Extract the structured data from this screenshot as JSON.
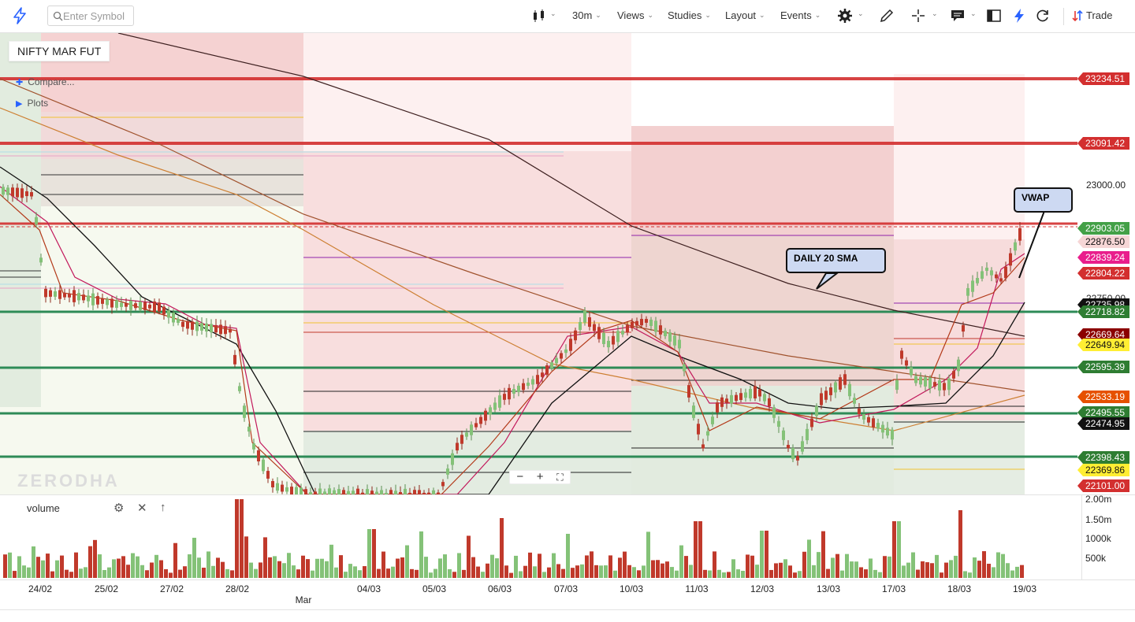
{
  "toolbar": {
    "search_placeholder": "Enter Symbol",
    "interval": "30m",
    "views": "Views",
    "studies": "Studies",
    "layout": "Layout",
    "events": "Events",
    "trade": "Trade"
  },
  "chart": {
    "symbol": "NIFTY MAR FUT",
    "compare": "Compare...",
    "plots": "Plots",
    "watermark": "ZERODHA",
    "callouts": {
      "vwap": "VWAP",
      "sma": "DAILY 20 SMA"
    },
    "accent_color": "#2962ff",
    "up_color": "#84c278",
    "down_color": "#c0392b"
  },
  "price_axis": {
    "ticks": [
      "23000.00",
      "22750.00"
    ],
    "labels": [
      {
        "text": "23234.51",
        "color": "#d32f2f"
      },
      {
        "text": "23091.42",
        "color": "#d32f2f"
      },
      {
        "text": "22903.05",
        "color": "#43a047"
      },
      {
        "text": "22876.50",
        "color": "#f6d6d6"
      },
      {
        "text": "22839.24",
        "color": "#e91e8c"
      },
      {
        "text": "22804.22",
        "color": "#d32f2f"
      },
      {
        "text": "22735.98",
        "color": "#111111"
      },
      {
        "text": "22718.82",
        "color": "#2e7d32"
      },
      {
        "text": "22669.64",
        "color": "#8b0000"
      },
      {
        "text": "22649.94",
        "color": "#ffee33"
      },
      {
        "text": "22595.39",
        "color": "#2e7d32"
      },
      {
        "text": "22533.19",
        "color": "#e65100"
      },
      {
        "text": "22495.55",
        "color": "#2e7d32"
      },
      {
        "text": "22474.95",
        "color": "#111111"
      },
      {
        "text": "22398.43",
        "color": "#2e7d32"
      },
      {
        "text": "22369.86",
        "color": "#ffee33"
      },
      {
        "text": "22101.00",
        "color": "#d32f2f"
      }
    ]
  },
  "volume": {
    "title": "volume",
    "ticks": [
      "2.00m",
      "1.50m",
      "1000k",
      "500k"
    ]
  },
  "date_axis": [
    "24/02",
    "25/02",
    "27/02",
    "28/02",
    "Mar",
    "04/03",
    "05/03",
    "06/03",
    "07/03",
    "10/03",
    "11/03",
    "12/03",
    "13/03",
    "17/03",
    "18/03",
    "19/03"
  ]
}
